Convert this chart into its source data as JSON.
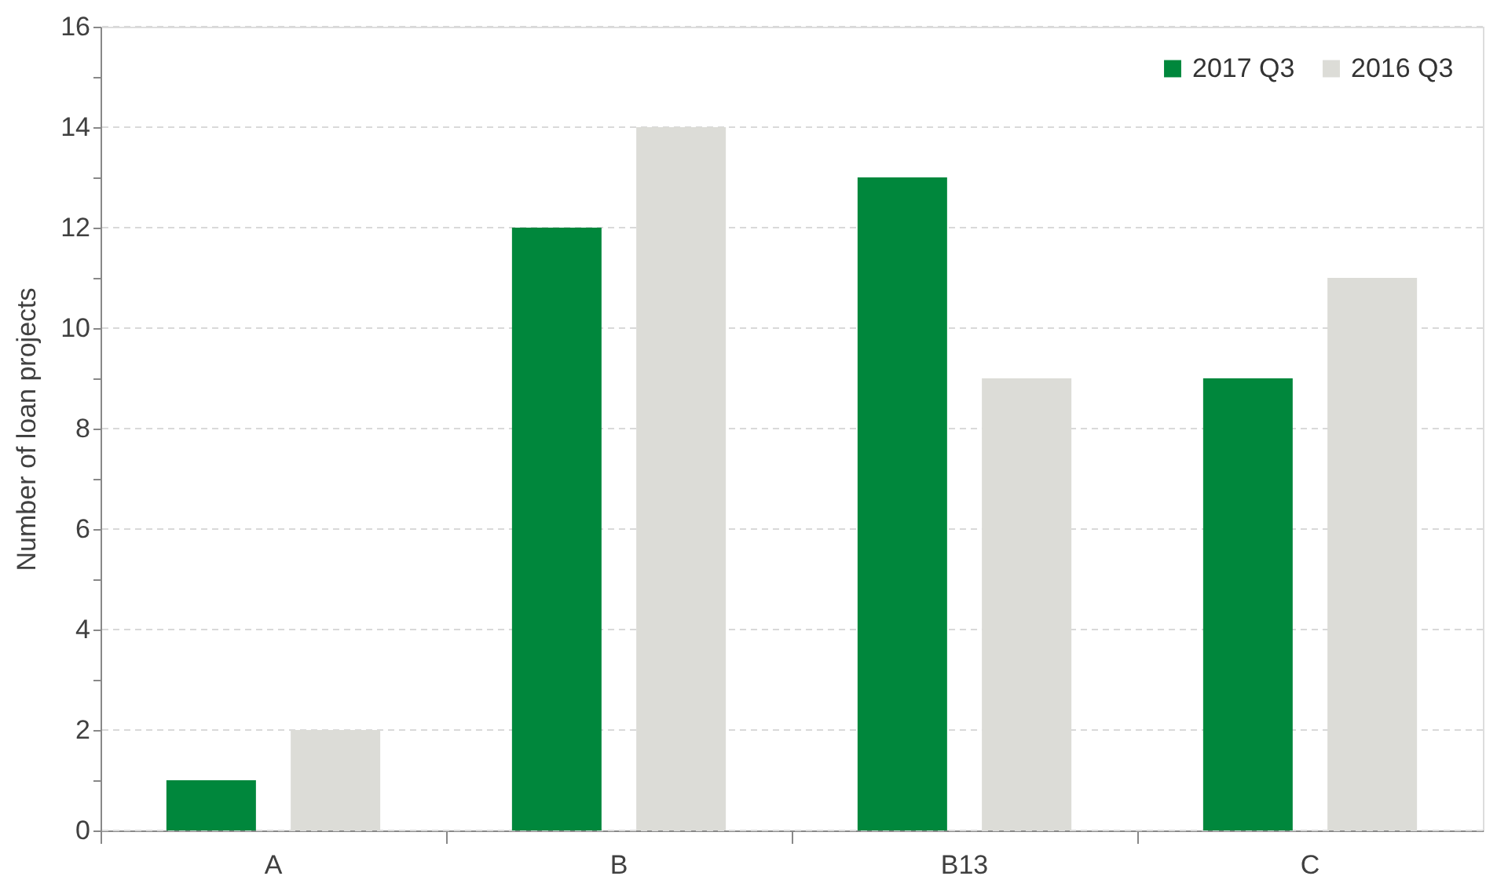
{
  "chart_data": {
    "type": "bar",
    "ylabel": "Number  of loan projects",
    "categories": [
      "A",
      "B",
      "B13",
      "C"
    ],
    "series": [
      {
        "name": "2017 Q3",
        "color": "#00873c",
        "values": [
          1,
          12,
          13,
          9
        ]
      },
      {
        "name": "2016 Q3",
        "color": "#dcdcd7",
        "values": [
          2,
          14,
          9,
          11
        ]
      }
    ],
    "ylim": [
      0,
      16
    ],
    "yticks": [
      0,
      {
        "value": 1,
        "label": null
      },
      2,
      {
        "value": 3,
        "label": null
      },
      4,
      {
        "value": 5,
        "label": null
      },
      6,
      {
        "value": 7,
        "label": null
      },
      8,
      {
        "value": 9,
        "label": null
      },
      10,
      {
        "value": 11,
        "label": null
      },
      12,
      {
        "value": 13,
        "label": null
      },
      14,
      {
        "value": 15,
        "label": null
      },
      16
    ],
    "grid": "y",
    "legend": "top right"
  }
}
